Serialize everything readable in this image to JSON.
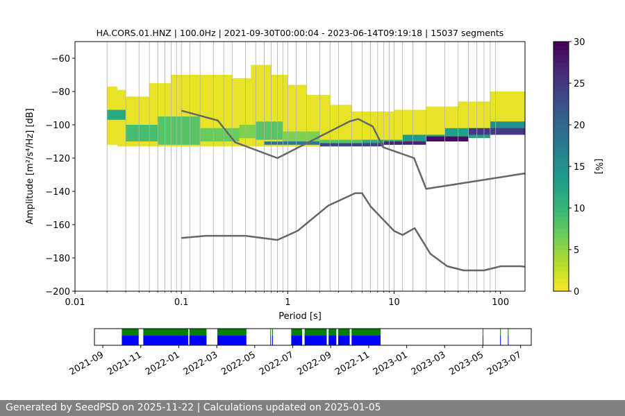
{
  "chart_data": [
    {
      "type": "heatmap",
      "title": "HA.CORS.01.HNZ | 100.0Hz | 2021-09-30T00:00:04 - 2023-06-14T09:19:18 | 15037 segments",
      "xlabel": "Period [s]",
      "ylabel": "Amplitude [m²/s⁴/Hz] [dB]",
      "x_scale": "log",
      "xlim": [
        0.01,
        170
      ],
      "ylim": [
        -200,
        -50
      ],
      "x_ticks": [
        0.01,
        0.1,
        1,
        10,
        100
      ],
      "x_tick_labels": [
        "0.01",
        "0.1",
        "1",
        "10",
        "100"
      ],
      "y_ticks": [
        -200,
        -180,
        -160,
        -140,
        -120,
        -100,
        -80,
        -60
      ],
      "y_tick_labels": [
        "−200",
        "−180",
        "−160",
        "−140",
        "−120",
        "−100",
        "−80",
        "−60"
      ],
      "grid": "vertical lines at each period bin",
      "colormap": "viridis_r",
      "colorbar": {
        "label": "[%]",
        "range": [
          0,
          30
        ],
        "ticks": [
          0,
          5,
          10,
          15,
          20,
          25,
          30
        ],
        "tick_labels": [
          "0",
          "5",
          "10",
          "15",
          "20",
          "25",
          "30"
        ]
      },
      "series": [
        {
          "name": "",
          "role": "noise model (high)",
          "color": "#666666",
          "x": [
            0.1,
            0.22,
            0.32,
            0.8,
            3.8,
            4.6,
            6.3,
            7.9,
            15.4,
            20,
            354.8
          ],
          "y": [
            -91.5,
            -97.4,
            -110.5,
            -120.0,
            -98.0,
            -96.5,
            -101.0,
            -113.5,
            -120.0,
            -138.5,
            -126.0
          ]
        },
        {
          "name": "",
          "role": "noise model (low)",
          "color": "#666666",
          "x": [
            0.1,
            0.17,
            0.4,
            0.8,
            1.24,
            2.4,
            4.3,
            5.0,
            6.0,
            10.0,
            12.0,
            15.6,
            21.9,
            31.6,
            45.0,
            70.0,
            101.0,
            154.0,
            328.0
          ],
          "y": [
            -168.0,
            -166.7,
            -166.7,
            -169.2,
            -163.7,
            -148.6,
            -141.1,
            -141.1,
            -149.0,
            -163.8,
            -166.2,
            -162.1,
            -177.5,
            -185.0,
            -187.5,
            -187.5,
            -185.0,
            -185.0,
            -187.5
          ]
        }
      ]
    },
    {
      "type": "timeline",
      "x_tick_labels": [
        "2021-09",
        "2021-11",
        "2022-01",
        "2022-03",
        "2022-05",
        "2022-07",
        "2022-09",
        "2022-11",
        "2023-01",
        "2023-03",
        "2023-05",
        "2023-07"
      ],
      "colors": {
        "top": "#008000",
        "bottom": "#0000ff"
      },
      "available_periods": [
        [
          "2021-10-01",
          "2021-10-28"
        ],
        [
          "2021-11-05",
          "2022-01-16"
        ],
        [
          "2022-01-18",
          "2022-02-15"
        ],
        [
          "2022-03-02",
          "2022-04-18"
        ],
        [
          "2022-05-26",
          "2022-05-27"
        ],
        [
          "2022-05-29",
          "2022-05-30"
        ],
        [
          "2022-06-29",
          "2022-07-16"
        ],
        [
          "2022-07-20",
          "2022-08-25"
        ],
        [
          "2022-08-28",
          "2022-09-10"
        ],
        [
          "2022-09-13",
          "2022-10-01"
        ],
        [
          "2022-10-04",
          "2022-11-20"
        ],
        [
          "2023-05-01",
          "2023-05-01"
        ],
        [
          "2023-05-29",
          "2023-05-29"
        ],
        [
          "2023-06-11",
          "2023-06-12"
        ]
      ]
    }
  ],
  "footer": {
    "text": "Generated by SeedPSD on 2025-11-22 | Calculations updated on 2025-01-05"
  }
}
